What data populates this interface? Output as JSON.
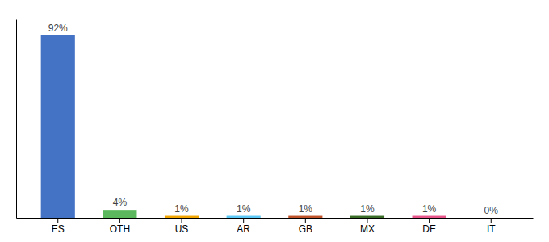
{
  "chart_data": {
    "type": "bar",
    "categories": [
      "ES",
      "OTH",
      "US",
      "AR",
      "GB",
      "MX",
      "DE",
      "IT"
    ],
    "values": [
      92,
      4,
      1,
      1,
      1,
      1,
      1,
      0
    ],
    "value_labels": [
      "92%",
      "4%",
      "1%",
      "1%",
      "1%",
      "1%",
      "1%",
      "0%"
    ],
    "colors": [
      "#4472C4",
      "#5CB85C",
      "#F0A500",
      "#5BC8F5",
      "#C0522A",
      "#3A6E28",
      "#E8558A",
      "#AAAAAA"
    ],
    "ylim": [
      0,
      100
    ],
    "grid": false,
    "data_labels": true,
    "tick_labels": "x"
  }
}
